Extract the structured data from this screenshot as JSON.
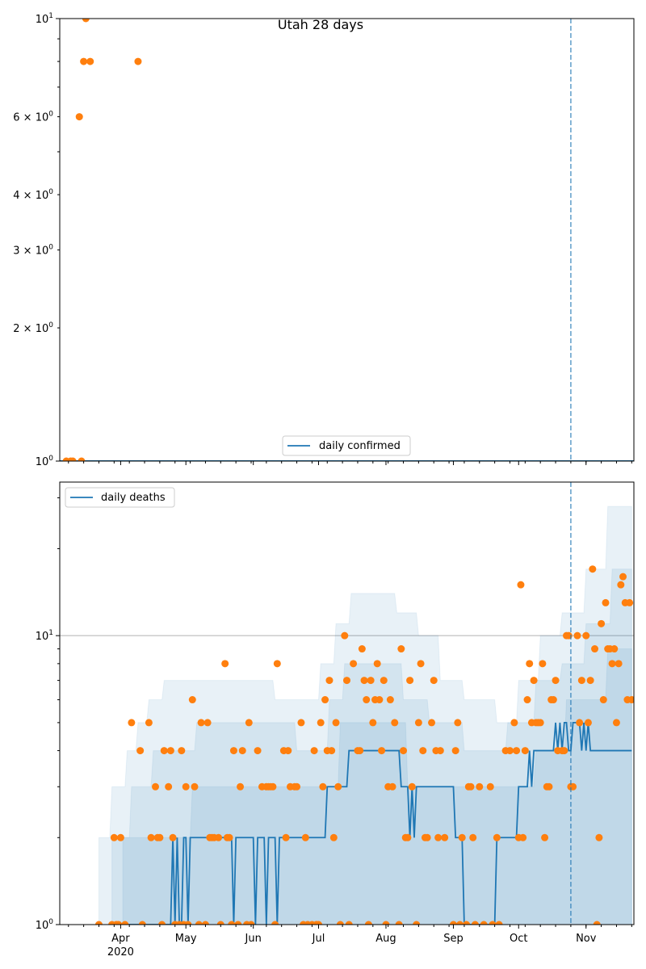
{
  "chart_data": [
    {
      "type": "scatter",
      "title": "Utah 28 days",
      "xlabel": "",
      "ylabel": "",
      "yscale": "log",
      "ylim": [
        1,
        10
      ],
      "xlim": [
        "2020-03-04",
        "2020-11-23"
      ],
      "legend": {
        "placement": "bottom-center",
        "entries": [
          "daily confirmed"
        ]
      },
      "yticks_major": [
        {
          "value": 1,
          "base": "10",
          "exp": "0"
        },
        {
          "value": 10,
          "base": "10",
          "exp": "1"
        }
      ],
      "yticks_minor_labeled": [
        {
          "value": 2,
          "mant": "2 × 10",
          "exp": "0"
        },
        {
          "value": 3,
          "mant": "3 × 10",
          "exp": "0"
        },
        {
          "value": 4,
          "mant": "4 × 10",
          "exp": "0"
        },
        {
          "value": 6,
          "mant": "6 × 10",
          "exp": "0"
        }
      ],
      "line": {
        "name": "daily confirmed",
        "color": "#1f77b4",
        "start": "2020-03-04",
        "end": "2020-11-23",
        "value": 1
      },
      "points": [
        {
          "date": "2020-03-07",
          "value": 1
        },
        {
          "date": "2020-03-09",
          "value": 1
        },
        {
          "date": "2020-03-10",
          "value": 1
        },
        {
          "date": "2020-03-13",
          "value": 6
        },
        {
          "date": "2020-03-14",
          "value": 1
        },
        {
          "date": "2020-03-15",
          "value": 8
        },
        {
          "date": "2020-03-16",
          "value": 10
        },
        {
          "date": "2020-03-18",
          "value": 8
        },
        {
          "date": "2020-04-09",
          "value": 8
        }
      ],
      "point_color": "#ff7f0e",
      "vline": {
        "date": "2020-10-25",
        "style": "dashed",
        "color": "#1f77b4"
      }
    },
    {
      "type": "line",
      "title": "",
      "xlabel": "",
      "ylabel": "",
      "yscale": "log",
      "ylim": [
        1,
        34
      ],
      "xlim": [
        "2020-03-04",
        "2020-11-23"
      ],
      "grid": "y major",
      "legend": {
        "placement": "top-left",
        "entries": [
          "daily deaths"
        ]
      },
      "yticks_major": [
        {
          "value": 1,
          "base": "10",
          "exp": "0"
        },
        {
          "value": 10,
          "base": "10",
          "exp": "1"
        }
      ],
      "xticks": [
        {
          "date": "2020-04-01",
          "label": "Apr",
          "sublabel": "2020"
        },
        {
          "date": "2020-05-01",
          "label": "May"
        },
        {
          "date": "2020-06-01",
          "label": "Jun"
        },
        {
          "date": "2020-07-01",
          "label": "Jul"
        },
        {
          "date": "2020-08-01",
          "label": "Aug"
        },
        {
          "date": "2020-09-01",
          "label": "Sep"
        },
        {
          "date": "2020-10-01",
          "label": "Oct"
        },
        {
          "date": "2020-11-01",
          "label": "Nov"
        }
      ],
      "start_date": "2020-03-05",
      "series_color": "#1f77b4",
      "point_color": "#ff7f0e",
      "daily_points": [
        0,
        0,
        0,
        0,
        0,
        0,
        0,
        0,
        0,
        0,
        0,
        0,
        0,
        0,
        0,
        0,
        0,
        1,
        0,
        0,
        0,
        0,
        0,
        1,
        2,
        1,
        1,
        2,
        0,
        1,
        0,
        0,
        5,
        0,
        0,
        0,
        4,
        1,
        0,
        0,
        5,
        2,
        0,
        3,
        2,
        2,
        1,
        4,
        0,
        3,
        4,
        2,
        1,
        0,
        1,
        4,
        1,
        3,
        1,
        0,
        6,
        3,
        0,
        1,
        5,
        0,
        1,
        5,
        2,
        2,
        2,
        0,
        2,
        1,
        0,
        8,
        2,
        2,
        1,
        4,
        0,
        1,
        3,
        4,
        0,
        1,
        5,
        1,
        0,
        0,
        4,
        0,
        3,
        0,
        3,
        3,
        3,
        3,
        1,
        8,
        0,
        0,
        4,
        2,
        4,
        3,
        0,
        3,
        3,
        0,
        5,
        1,
        2,
        1,
        0,
        1,
        4,
        1,
        1,
        5,
        3,
        6,
        4,
        7,
        4,
        2,
        5,
        3,
        1,
        0,
        10,
        7,
        1,
        0,
        8,
        0,
        4,
        4,
        9,
        7,
        6,
        1,
        7,
        5,
        6,
        8,
        6,
        4,
        7,
        1,
        3,
        6,
        3,
        5,
        0,
        1,
        9,
        4,
        2,
        2,
        7,
        3,
        0,
        1,
        5,
        8,
        4,
        2,
        2,
        0,
        5,
        7,
        4,
        2,
        4,
        0,
        2,
        0,
        0,
        0,
        1,
        4,
        5,
        1,
        2,
        0,
        1,
        3,
        3,
        2,
        1,
        0,
        3,
        0,
        1,
        0,
        0,
        3,
        1,
        0,
        2,
        1,
        0,
        0,
        4,
        0,
        4,
        0,
        5,
        4,
        2,
        15,
        2,
        4,
        6,
        8,
        5,
        7,
        5,
        5,
        5,
        8,
        2,
        3,
        3,
        6,
        6,
        7,
        4,
        0,
        4,
        4,
        10,
        10,
        3,
        3,
        0,
        10,
        5,
        7,
        0,
        10,
        5,
        7,
        17,
        9,
        1,
        2,
        11,
        6,
        13,
        9,
        9,
        8,
        9,
        5,
        8,
        15,
        16,
        13,
        6,
        13,
        6
      ],
      "line_runs": [
        [
          0,
          23
        ],
        [
          1,
          28
        ],
        [
          2,
          1
        ],
        [
          1,
          1
        ],
        [
          2,
          1
        ],
        [
          1,
          1
        ],
        [
          1,
          1
        ],
        [
          2,
          1
        ],
        [
          2,
          1
        ],
        [
          1,
          1
        ],
        [
          2,
          1
        ],
        [
          2,
          19
        ],
        [
          1,
          1
        ],
        [
          2,
          9
        ],
        [
          1,
          1
        ],
        [
          2,
          4
        ],
        [
          1,
          1
        ],
        [
          2,
          4
        ],
        [
          1,
          1
        ],
        [
          2,
          22
        ],
        [
          3,
          10
        ],
        [
          4,
          24
        ],
        [
          3,
          4
        ],
        [
          2,
          1
        ],
        [
          3,
          1
        ],
        [
          2,
          1
        ],
        [
          3,
          18
        ],
        [
          2,
          4
        ],
        [
          1,
          15
        ],
        [
          2,
          10
        ],
        [
          3,
          5
        ],
        [
          4,
          1
        ],
        [
          3,
          1
        ],
        [
          4,
          10
        ],
        [
          5,
          1
        ],
        [
          4,
          1
        ],
        [
          5,
          1
        ],
        [
          4,
          1
        ],
        [
          5,
          2
        ],
        [
          4,
          1
        ],
        [
          4,
          1
        ],
        [
          5,
          4
        ],
        [
          4,
          1
        ],
        [
          5,
          1
        ],
        [
          4,
          1
        ],
        [
          5,
          1
        ],
        [
          4,
          1
        ],
        [
          4,
          19
        ]
      ],
      "bands": [
        {
          "name": "outer",
          "upper_runs": [
            [
              0,
              17
            ],
            [
              2,
              6
            ],
            [
              3,
              7
            ],
            [
              4,
              5
            ],
            [
              5,
              5
            ],
            [
              6,
              7
            ],
            [
              7,
              30
            ],
            [
              7,
              21
            ],
            [
              6,
              21
            ],
            [
              8,
              7
            ],
            [
              11,
              7
            ],
            [
              14,
              21
            ],
            [
              12,
              10
            ],
            [
              10,
              10
            ],
            [
              7,
              11
            ],
            [
              6,
              15
            ],
            [
              5,
              10
            ],
            [
              7,
              10
            ],
            [
              10,
              10
            ],
            [
              12,
              11
            ],
            [
              17,
              10
            ],
            [
              28,
              12
            ]
          ]
        },
        {
          "name": "middle",
          "upper_runs": [
            [
              0,
              23
            ],
            [
              2,
              9
            ],
            [
              3,
              10
            ],
            [
              4,
              20
            ],
            [
              5,
              46
            ],
            [
              4,
              15
            ],
            [
              6,
              7
            ],
            [
              8,
              27
            ],
            [
              6,
              12
            ],
            [
              5,
              16
            ],
            [
              4,
              20
            ],
            [
              5,
              13
            ],
            [
              7,
              12
            ],
            [
              8,
              11
            ],
            [
              11,
              12
            ],
            [
              17,
              10
            ]
          ]
        },
        {
          "name": "inner",
          "upper_runs": [
            [
              0,
              28
            ],
            [
              2,
              32
            ],
            [
              3,
              53
            ],
            [
              3,
              15
            ],
            [
              5,
              31
            ],
            [
              3,
              36
            ],
            [
              3,
              23
            ],
            [
              4,
              14
            ],
            [
              6,
              19
            ],
            [
              9,
              12
            ]
          ]
        }
      ],
      "vline": {
        "date": "2020-10-25",
        "style": "dashed",
        "color": "#1f77b4"
      }
    }
  ]
}
